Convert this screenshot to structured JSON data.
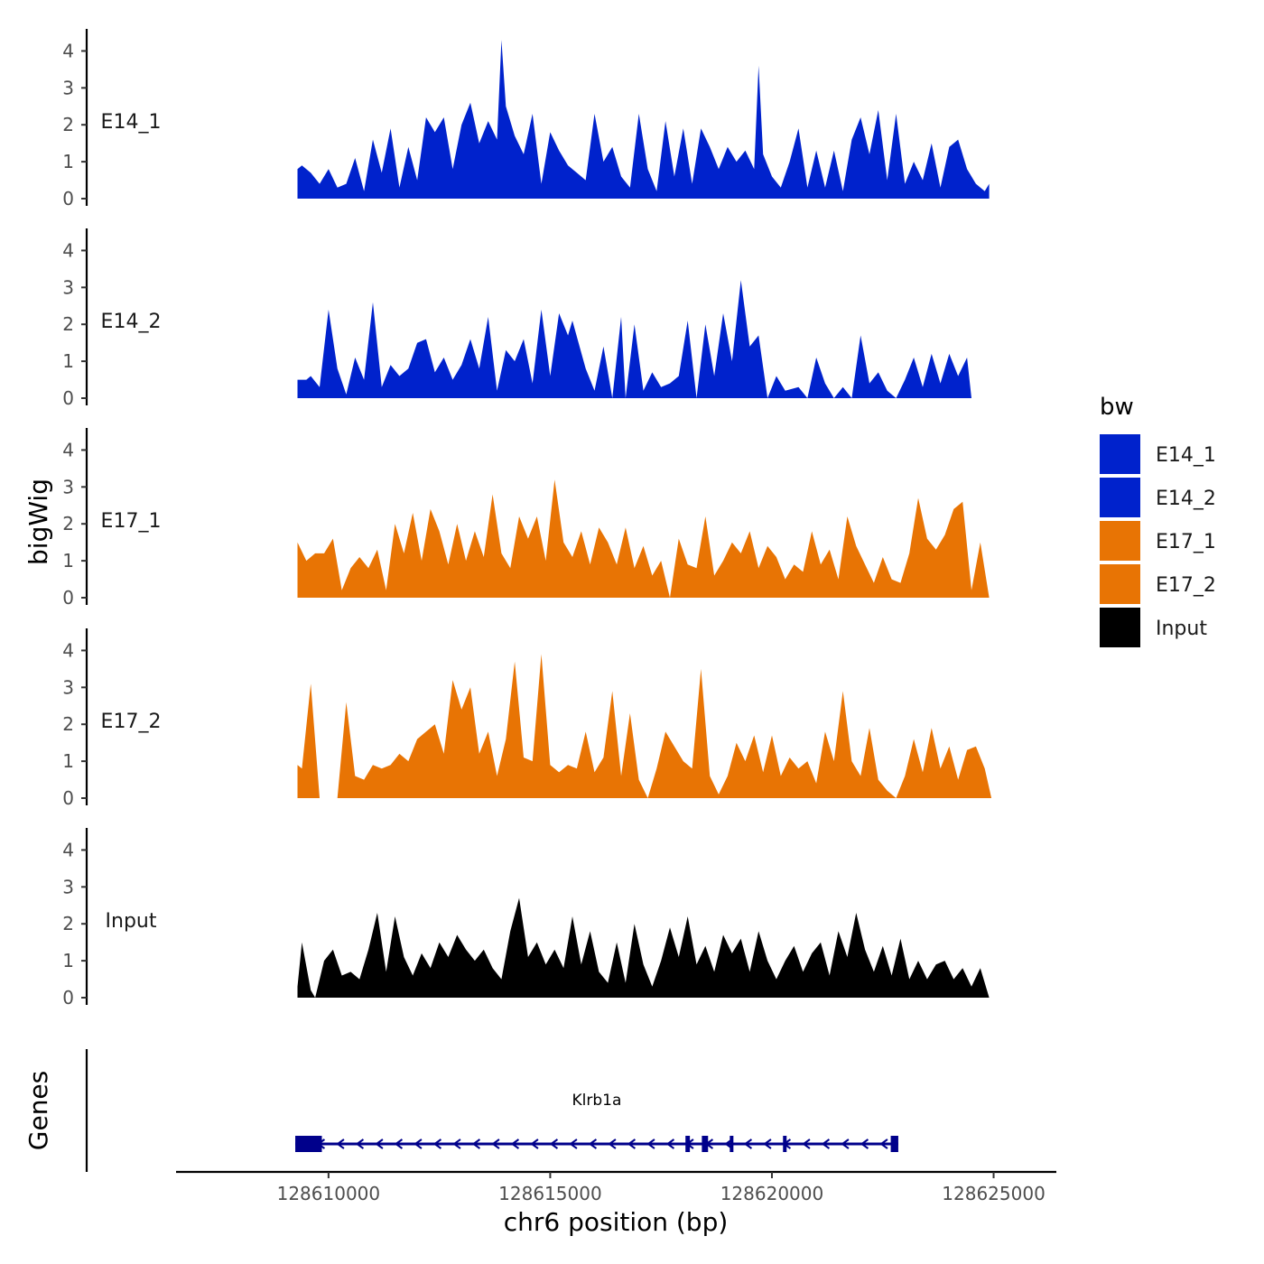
{
  "chart_data": {
    "type": "area",
    "xlabel": "chr6 position (bp)",
    "ylabel": "bigWig",
    "genes_label": "Genes",
    "xlim": [
      128607600,
      128625600
    ],
    "x_ticks": [
      128610000,
      128615000,
      128620000,
      128625000
    ],
    "x_tick_labels": [
      "128610000",
      "128615000",
      "128620000",
      "128625000"
    ],
    "ylim": [
      0,
      4.5
    ],
    "y_ticks": [
      0,
      1,
      2,
      3,
      4
    ],
    "y_tick_labels": [
      "0",
      "1",
      "2",
      "3",
      "4"
    ],
    "legend": {
      "title": "bw",
      "position": "right",
      "entries": [
        {
          "name": "E14_1",
          "color": "#0022cc"
        },
        {
          "name": "E14_2",
          "color": "#0022cc"
        },
        {
          "name": "E17_1",
          "color": "#e87404"
        },
        {
          "name": "E17_2",
          "color": "#e87404"
        },
        {
          "name": "Input",
          "color": "#000000"
        }
      ]
    },
    "series": [
      {
        "name": "E14_1",
        "color": "#0022cc",
        "x": [
          128609300,
          128609400,
          128609600,
          128609800,
          128610000,
          128610200,
          128610400,
          128610600,
          128610800,
          128611000,
          128611200,
          128611400,
          128611600,
          128611800,
          128612000,
          128612200,
          128612400,
          128612600,
          128612800,
          128613000,
          128613200,
          128613400,
          128613600,
          128613800,
          128613900,
          128614000,
          128614200,
          128614400,
          128614600,
          128614800,
          128615000,
          128615200,
          128615400,
          128615600,
          128615800,
          128616000,
          128616200,
          128616400,
          128616600,
          128616800,
          128617000,
          128617200,
          128617400,
          128617600,
          128617800,
          128618000,
          128618200,
          128618400,
          128618600,
          128618800,
          128619000,
          128619200,
          128619400,
          128619600,
          128619700,
          128619800,
          128620000,
          128620200,
          128620400,
          128620600,
          128620800,
          128621000,
          128621200,
          128621400,
          128621600,
          128621800,
          128622000,
          128622200,
          128622400,
          128622600,
          128622800,
          128623000,
          128623200,
          128623400,
          128623600,
          128623800,
          128624000,
          128624200,
          128624400,
          128624600,
          128624800,
          128624900
        ],
        "values": [
          0.8,
          0.9,
          0.7,
          0.4,
          0.8,
          0.3,
          0.4,
          1.1,
          0.2,
          1.6,
          0.7,
          1.9,
          0.3,
          1.4,
          0.5,
          2.2,
          1.8,
          2.2,
          0.8,
          2.0,
          2.6,
          1.5,
          2.1,
          1.6,
          4.3,
          2.5,
          1.7,
          1.2,
          2.3,
          0.4,
          1.8,
          1.3,
          0.9,
          0.7,
          0.5,
          2.3,
          1.0,
          1.4,
          0.6,
          0.3,
          2.3,
          0.8,
          0.2,
          2.1,
          0.6,
          1.9,
          0.4,
          1.9,
          1.4,
          0.8,
          1.4,
          1.0,
          1.3,
          0.8,
          3.6,
          1.2,
          0.6,
          0.3,
          1.0,
          1.9,
          0.3,
          1.3,
          0.3,
          1.3,
          0.2,
          1.6,
          2.2,
          1.2,
          2.4,
          0.5,
          2.3,
          0.4,
          1.0,
          0.5,
          1.5,
          0.3,
          1.4,
          1.6,
          0.8,
          0.4,
          0.2,
          0.4
        ]
      },
      {
        "name": "E14_2",
        "color": "#0022cc",
        "x": [
          128609300,
          128609500,
          128609600,
          128609800,
          128610000,
          128610200,
          128610400,
          128610600,
          128610800,
          128611000,
          128611200,
          128611400,
          128611600,
          128611800,
          128612000,
          128612200,
          128612400,
          128612600,
          128612800,
          128613000,
          128613200,
          128613400,
          128613600,
          128613800,
          128614000,
          128614200,
          128614400,
          128614600,
          128614800,
          128615000,
          128615200,
          128615400,
          128615500,
          128615800,
          128616000,
          128616200,
          128616400,
          128616600,
          128616700,
          128616900,
          128617100,
          128617300,
          128617500,
          128617700,
          128617900,
          128618100,
          128618300,
          128618500,
          128618700,
          128618900,
          128619100,
          128619300,
          128619500,
          128619700,
          128619900,
          128620100,
          128620300,
          128620600,
          128620800,
          128621000,
          128621200,
          128621400,
          128621600,
          128621800,
          128622000,
          128622200,
          128622400,
          128622600,
          128622800,
          128623000,
          128623200,
          128623400,
          128623600,
          128623800,
          128624000,
          128624200,
          128624400,
          128624500
        ],
        "values": [
          0.5,
          0.5,
          0.6,
          0.3,
          2.4,
          0.8,
          0.1,
          1.1,
          0.5,
          2.6,
          0.3,
          0.9,
          0.6,
          0.8,
          1.5,
          1.6,
          0.7,
          1.1,
          0.5,
          0.9,
          1.6,
          0.8,
          2.2,
          0.2,
          1.3,
          1.0,
          1.6,
          0.4,
          2.4,
          0.6,
          2.3,
          1.7,
          2.1,
          0.8,
          0.2,
          1.4,
          0.0,
          2.2,
          0.0,
          2.0,
          0.2,
          0.7,
          0.3,
          0.4,
          0.6,
          2.1,
          0.0,
          2.0,
          0.6,
          2.3,
          1.0,
          3.2,
          1.4,
          1.7,
          0.0,
          0.6,
          0.2,
          0.3,
          0.0,
          1.1,
          0.4,
          0.0,
          0.3,
          0.0,
          1.7,
          0.4,
          0.7,
          0.2,
          0.0,
          0.5,
          1.1,
          0.3,
          1.2,
          0.4,
          1.2,
          0.6,
          1.1,
          0.0
        ]
      },
      {
        "name": "E17_1",
        "color": "#e87404",
        "x": [
          128609300,
          128609500,
          128609700,
          128609900,
          128610100,
          128610300,
          128610500,
          128610700,
          128610900,
          128611100,
          128611300,
          128611500,
          128611700,
          128611900,
          128612100,
          128612300,
          128612500,
          128612700,
          128612900,
          128613100,
          128613300,
          128613500,
          128613700,
          128613900,
          128614100,
          128614300,
          128614500,
          128614700,
          128614900,
          128615100,
          128615300,
          128615500,
          128615700,
          128615900,
          128616100,
          128616300,
          128616500,
          128616700,
          128616900,
          128617100,
          128617300,
          128617500,
          128617700,
          128617900,
          128618100,
          128618300,
          128618500,
          128618700,
          128618900,
          128619100,
          128619300,
          128619500,
          128619700,
          128619900,
          128620100,
          128620300,
          128620500,
          128620700,
          128620900,
          128621100,
          128621300,
          128621500,
          128621700,
          128621900,
          128622100,
          128622300,
          128622500,
          128622700,
          128622900,
          128623100,
          128623300,
          128623500,
          128623700,
          128623900,
          128624100,
          128624300,
          128624500,
          128624700,
          128624900
        ],
        "values": [
          1.5,
          1.0,
          1.2,
          1.2,
          1.6,
          0.2,
          0.8,
          1.1,
          0.8,
          1.3,
          0.2,
          2.0,
          1.2,
          2.3,
          1.0,
          2.4,
          1.8,
          0.9,
          2.0,
          1.0,
          1.8,
          1.1,
          2.8,
          1.2,
          0.8,
          2.2,
          1.6,
          2.2,
          1.0,
          3.2,
          1.5,
          1.1,
          1.8,
          0.9,
          1.9,
          1.5,
          0.9,
          1.9,
          0.8,
          1.4,
          0.6,
          1.0,
          0.0,
          1.6,
          0.9,
          0.8,
          2.2,
          0.6,
          1.0,
          1.5,
          1.2,
          1.8,
          0.8,
          1.4,
          1.1,
          0.5,
          0.9,
          0.7,
          1.8,
          0.9,
          1.3,
          0.5,
          2.2,
          1.4,
          0.9,
          0.4,
          1.1,
          0.5,
          0.4,
          1.2,
          2.7,
          1.6,
          1.3,
          1.7,
          2.4,
          2.6,
          0.2,
          1.5,
          0.0
        ]
      },
      {
        "name": "E17_2",
        "color": "#e87404",
        "x": [
          128609300,
          128609400,
          128609600,
          128609800,
          128610000,
          128610200,
          128610400,
          128610600,
          128610800,
          128611000,
          128611200,
          128611400,
          128611600,
          128611800,
          128612000,
          128612200,
          128612400,
          128612600,
          128612800,
          128613000,
          128613200,
          128613400,
          128613600,
          128613800,
          128614000,
          128614200,
          128614400,
          128614600,
          128614800,
          128615000,
          128615200,
          128615400,
          128615600,
          128615800,
          128616000,
          128616200,
          128616400,
          128616600,
          128616800,
          128617000,
          128617200,
          128617400,
          128617600,
          128617800,
          128618000,
          128618200,
          128618400,
          128618600,
          128618800,
          128619000,
          128619200,
          128619400,
          128619600,
          128619800,
          128620000,
          128620200,
          128620400,
          128620600,
          128620800,
          128621000,
          128621200,
          128621400,
          128621600,
          128621800,
          128622000,
          128622200,
          128622400,
          128622600,
          128622800,
          128623000,
          128623200,
          128623400,
          128623600,
          128623800,
          128624000,
          128624200,
          128624400,
          128624600,
          128624800,
          128624950
        ],
        "values": [
          0.9,
          0.8,
          3.1,
          0.0,
          0.0,
          0.0,
          2.6,
          0.6,
          0.5,
          0.9,
          0.8,
          0.9,
          1.2,
          1.0,
          1.6,
          1.8,
          2.0,
          1.2,
          3.2,
          2.4,
          3.0,
          1.2,
          1.8,
          0.6,
          1.6,
          3.7,
          1.1,
          1.0,
          3.9,
          0.9,
          0.7,
          0.9,
          0.8,
          1.8,
          0.7,
          1.1,
          2.9,
          0.6,
          2.3,
          0.5,
          0.0,
          0.8,
          1.8,
          1.4,
          1.0,
          0.8,
          3.5,
          0.6,
          0.1,
          0.6,
          1.5,
          1.0,
          1.7,
          0.7,
          1.7,
          0.6,
          1.1,
          0.8,
          1.0,
          0.4,
          1.8,
          1.0,
          2.9,
          1.0,
          0.6,
          1.9,
          0.5,
          0.2,
          0.0,
          0.6,
          1.6,
          0.7,
          1.9,
          0.8,
          1.4,
          0.5,
          1.3,
          1.4,
          0.8,
          0.0
        ]
      },
      {
        "name": "Input",
        "color": "#000000",
        "x": [
          128609300,
          128609400,
          128609600,
          128609700,
          128609900,
          128610100,
          128610300,
          128610500,
          128610700,
          128610900,
          128611100,
          128611300,
          128611500,
          128611700,
          128611900,
          128612100,
          128612300,
          128612500,
          128612700,
          128612900,
          128613100,
          128613300,
          128613500,
          128613700,
          128613900,
          128614100,
          128614300,
          128614500,
          128614700,
          128614900,
          128615100,
          128615300,
          128615500,
          128615700,
          128615900,
          128616100,
          128616300,
          128616500,
          128616700,
          128616900,
          128617100,
          128617300,
          128617500,
          128617700,
          128617900,
          128618100,
          128618300,
          128618500,
          128618700,
          128618900,
          128619100,
          128619300,
          128619500,
          128619700,
          128619900,
          128620100,
          128620300,
          128620500,
          128620700,
          128620900,
          128621100,
          128621300,
          128621500,
          128621700,
          128621900,
          128622100,
          128622300,
          128622500,
          128622700,
          128622900,
          128623100,
          128623300,
          128623500,
          128623700,
          128623900,
          128624100,
          128624300,
          128624500,
          128624700,
          128624900
        ],
        "values": [
          0.3,
          1.5,
          0.2,
          0.0,
          1.0,
          1.3,
          0.6,
          0.7,
          0.5,
          1.3,
          2.3,
          0.7,
          2.2,
          1.1,
          0.6,
          1.2,
          0.8,
          1.5,
          1.1,
          1.7,
          1.3,
          1.0,
          1.3,
          0.8,
          0.5,
          1.8,
          2.7,
          1.1,
          1.5,
          0.9,
          1.3,
          0.8,
          2.2,
          0.9,
          1.8,
          0.7,
          0.4,
          1.5,
          0.4,
          2.0,
          0.9,
          0.3,
          1.0,
          1.9,
          1.1,
          2.2,
          0.9,
          1.4,
          0.7,
          1.7,
          1.2,
          1.6,
          0.7,
          1.8,
          1.0,
          0.5,
          1.0,
          1.4,
          0.7,
          1.2,
          1.5,
          0.6,
          1.8,
          1.1,
          2.3,
          1.3,
          0.7,
          1.4,
          0.6,
          1.6,
          0.5,
          1.0,
          0.5,
          0.9,
          1.0,
          0.5,
          0.8,
          0.3,
          0.8,
          0.0
        ]
      }
    ],
    "genes": [
      {
        "name": "Klrb1a",
        "start": 128609250,
        "end": 128622850,
        "strand": "-",
        "color": "#00008b",
        "exons": [
          [
            128609250,
            128609850
          ],
          [
            128618050,
            128618150
          ],
          [
            128618420,
            128618560
          ],
          [
            128619050,
            128619130
          ],
          [
            128620250,
            128620330
          ],
          [
            128622680,
            128622850
          ]
        ]
      }
    ]
  }
}
